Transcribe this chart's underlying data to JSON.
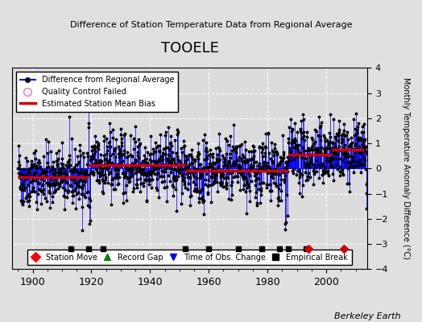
{
  "title": "TOOELE",
  "subtitle": "Difference of Station Temperature Data from Regional Average",
  "ylabel": "Monthly Temperature Anomaly Difference (°C)",
  "xlabel_years": [
    1900,
    1920,
    1940,
    1960,
    1980,
    2000
  ],
  "ylim": [
    -4,
    4
  ],
  "xlim": [
    1893,
    2014
  ],
  "background_color": "#e0e0e0",
  "plot_bg_color": "#dcdcdc",
  "credit": "Berkeley Earth",
  "seed": 42,
  "year_start": 1895,
  "year_end": 2013,
  "bias_segments": [
    {
      "start": 1895,
      "end": 1919,
      "bias": -0.35
    },
    {
      "start": 1919,
      "end": 1952,
      "bias": 0.15
    },
    {
      "start": 1952,
      "end": 1987,
      "bias": -0.1
    },
    {
      "start": 1987,
      "end": 2002,
      "bias": 0.55
    },
    {
      "start": 2002,
      "end": 2013,
      "bias": 0.75
    }
  ],
  "event_y": -3.2,
  "station_moves": [
    1994,
    2006
  ],
  "record_gaps": [],
  "time_obs_changes": [],
  "empirical_breaks": [
    1913,
    1919,
    1924,
    1952,
    1960,
    1970,
    1978,
    1984,
    1987,
    1993
  ],
  "line_color": "#0000ff",
  "marker_color": "#000000",
  "bias_color": "#cc0000",
  "station_move_color": "#cc0000",
  "record_gap_color": "#006600",
  "time_obs_color": "#0000cc",
  "empirical_break_color": "#000000",
  "noise_scale": 0.75,
  "noise_ar": 0.25
}
